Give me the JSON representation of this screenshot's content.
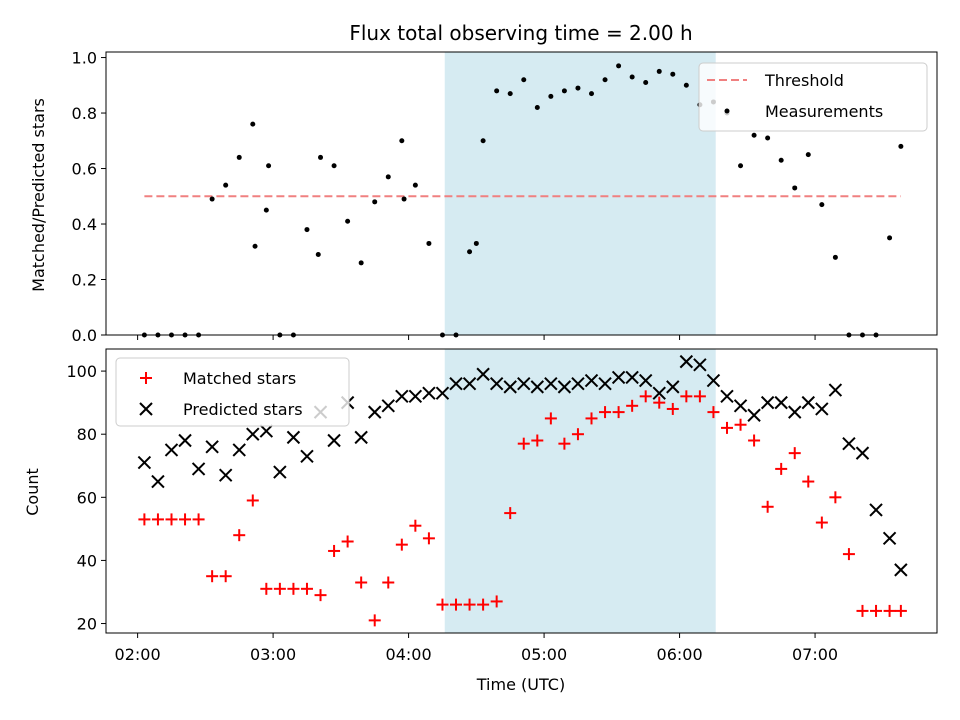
{
  "chart_data": [
    {
      "type": "scatter",
      "title": "Flux total observing time = 2.00 h",
      "xlabel": "",
      "ylabel": "Matched/Predicted stars",
      "xlim": [
        "01:46",
        "07:54"
      ],
      "ylim": [
        0,
        1.02
      ],
      "yticks": [
        "0.0",
        "0.2",
        "0.4",
        "0.6",
        "0.8",
        "1.0"
      ],
      "shaded_span": {
        "start": "04:16",
        "end": "06:16",
        "color": "#add8e6"
      },
      "threshold": {
        "name": "Threshold",
        "value": 0.5,
        "x_start": "02:03",
        "x_end": "07:38",
        "color": "#f08080"
      },
      "series": [
        {
          "name": "Measurements",
          "color": "#000000",
          "x": [
            "02:03",
            "02:09",
            "02:15",
            "02:21",
            "02:27",
            "02:33",
            "02:39",
            "02:45",
            "02:51",
            "02:57",
            "03:03",
            "03:09",
            "03:15",
            "03:21",
            "03:27",
            "03:33",
            "03:39",
            "03:45",
            "03:51",
            "03:57",
            "04:03",
            "04:09",
            "04:15",
            "04:21",
            "04:27",
            "04:33",
            "04:39",
            "04:45",
            "04:51",
            "04:57",
            "05:03",
            "05:09",
            "05:15",
            "05:21",
            "05:27",
            "05:33",
            "05:39",
            "05:45",
            "05:51",
            "05:57",
            "06:03",
            "06:09",
            "06:15",
            "06:21",
            "06:27",
            "06:33",
            "06:39",
            "06:45",
            "06:51",
            "06:57",
            "07:03",
            "07:09",
            "07:15",
            "07:21",
            "07:27",
            "07:33",
            "07:38",
            "02:52",
            "02:58",
            "03:58",
            "03:20",
            "04:30"
          ],
          "y": [
            0.0,
            0.0,
            0.0,
            0.0,
            0.0,
            0.49,
            0.54,
            0.64,
            0.76,
            0.45,
            0.0,
            0.0,
            0.38,
            0.64,
            0.61,
            0.41,
            0.26,
            0.48,
            0.57,
            0.7,
            0.54,
            0.33,
            0.0,
            0.0,
            0.3,
            0.7,
            0.88,
            0.87,
            0.92,
            0.82,
            0.86,
            0.88,
            0.89,
            0.87,
            0.92,
            0.97,
            0.93,
            0.91,
            0.95,
            0.94,
            0.9,
            0.83,
            0.84,
            0.8,
            0.61,
            0.72,
            0.71,
            0.63,
            0.53,
            0.65,
            0.47,
            0.28,
            0.0,
            0.0,
            0.0,
            0.35,
            0.68,
            0.32,
            0.61,
            0.49,
            0.29,
            0.33
          ]
        }
      ]
    },
    {
      "type": "scatter",
      "xlabel": "Time (UTC)",
      "ylabel": "Count",
      "xlim": [
        "01:46",
        "07:54"
      ],
      "ylim": [
        17,
        107
      ],
      "xticks": [
        "02:00",
        "03:00",
        "04:00",
        "05:00",
        "06:00",
        "07:00"
      ],
      "yticks": [
        "20",
        "40",
        "60",
        "80",
        "100"
      ],
      "shaded_span": {
        "start": "04:16",
        "end": "06:16",
        "color": "#add8e6"
      },
      "series": [
        {
          "name": "Matched stars",
          "marker": "plus",
          "color": "#ff0000",
          "x": [
            "02:03",
            "02:09",
            "02:15",
            "02:21",
            "02:27",
            "02:33",
            "02:39",
            "02:45",
            "02:51",
            "02:57",
            "03:03",
            "03:09",
            "03:15",
            "03:21",
            "03:27",
            "03:33",
            "03:39",
            "03:45",
            "03:51",
            "03:57",
            "04:03",
            "04:09",
            "04:15",
            "04:21",
            "04:27",
            "04:33",
            "04:39",
            "04:45",
            "04:51",
            "04:57",
            "05:03",
            "05:09",
            "05:15",
            "05:21",
            "05:27",
            "05:33",
            "05:39",
            "05:45",
            "05:51",
            "05:57",
            "06:03",
            "06:09",
            "06:15",
            "06:21",
            "06:27",
            "06:33",
            "06:39",
            "06:45",
            "06:51",
            "06:57",
            "07:03",
            "07:09",
            "07:15",
            "07:21",
            "07:27",
            "07:33",
            "07:38"
          ],
          "y": [
            53,
            53,
            53,
            53,
            53,
            35,
            35,
            48,
            59,
            31,
            31,
            31,
            31,
            29,
            43,
            46,
            33,
            21,
            33,
            45,
            51,
            47,
            26,
            26,
            26,
            26,
            27,
            55,
            77,
            78,
            85,
            77,
            80,
            85,
            87,
            87,
            89,
            92,
            90,
            88,
            92,
            92,
            87,
            82,
            83,
            78,
            57,
            69,
            74,
            65,
            52,
            60,
            42,
            24,
            24,
            24,
            24
          ]
        },
        {
          "name": "Predicted stars",
          "marker": "x",
          "color": "#000000",
          "x": [
            "02:03",
            "02:09",
            "02:15",
            "02:21",
            "02:27",
            "02:33",
            "02:39",
            "02:45",
            "02:51",
            "02:57",
            "03:03",
            "03:09",
            "03:15",
            "03:21",
            "03:27",
            "03:33",
            "03:39",
            "03:45",
            "03:51",
            "03:57",
            "04:03",
            "04:09",
            "04:15",
            "04:21",
            "04:27",
            "04:33",
            "04:39",
            "04:45",
            "04:51",
            "04:57",
            "05:03",
            "05:09",
            "05:15",
            "05:21",
            "05:27",
            "05:33",
            "05:39",
            "05:45",
            "05:51",
            "05:57",
            "06:03",
            "06:09",
            "06:15",
            "06:21",
            "06:27",
            "06:33",
            "06:39",
            "06:45",
            "06:51",
            "06:57",
            "07:03",
            "07:09",
            "07:15",
            "07:21",
            "07:27",
            "07:33",
            "07:38"
          ],
          "y": [
            71,
            65,
            75,
            78,
            69,
            76,
            67,
            75,
            80,
            81,
            68,
            79,
            73,
            87,
            78,
            90,
            79,
            87,
            89,
            92,
            92,
            93,
            93,
            96,
            96,
            99,
            96,
            95,
            96,
            95,
            96,
            95,
            96,
            97,
            96,
            98,
            98,
            97,
            93,
            95,
            103,
            102,
            97,
            92,
            89,
            86,
            90,
            90,
            87,
            90,
            88,
            94,
            77,
            74,
            56,
            47,
            37
          ]
        }
      ]
    }
  ]
}
